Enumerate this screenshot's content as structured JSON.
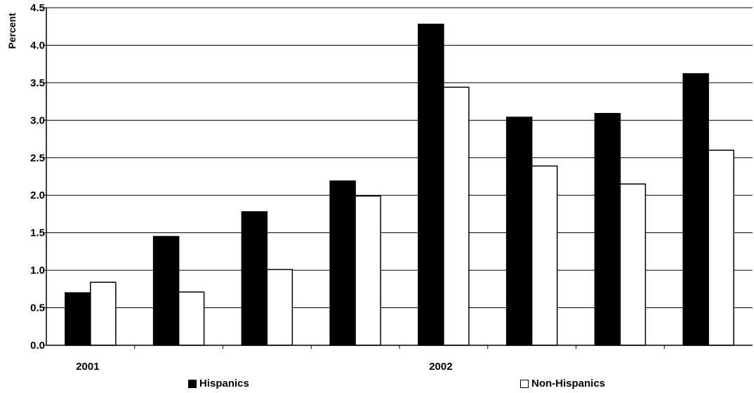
{
  "chart_data": {
    "type": "bar",
    "ylabel": "Percent",
    "ylim": [
      0,
      4.5
    ],
    "yticks": [
      "0.0",
      "0.5",
      "1.0",
      "1.5",
      "2.0",
      "2.5",
      "3.0",
      "3.5",
      "4.0",
      "4.5"
    ],
    "xlabels": [
      {
        "text": "2001",
        "group": 0
      },
      {
        "text": "2002",
        "group": 4
      }
    ],
    "categories": [
      "",
      "",
      "",
      "",
      "",
      "",
      "",
      ""
    ],
    "series": [
      {
        "name": "Hispanics",
        "color": "#000000",
        "values": [
          0.7,
          1.45,
          1.78,
          2.19,
          4.28,
          3.04,
          3.09,
          3.62
        ]
      },
      {
        "name": "Non-Hispanics",
        "color": "#ffffff",
        "values": [
          0.84,
          0.71,
          1.01,
          1.99,
          3.44,
          2.39,
          2.15,
          2.6
        ]
      }
    ],
    "grid": true,
    "legend_position": "bottom"
  }
}
